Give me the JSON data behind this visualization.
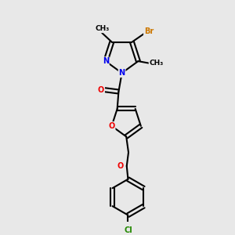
{
  "background_color": "#e8e8e8",
  "bond_color": "#000000",
  "bond_width": 1.5,
  "atom_colors": {
    "Br": "#cc7700",
    "N": "#0000ee",
    "O": "#ee0000",
    "Cl": "#228800",
    "C": "#000000"
  },
  "font_size": 7.0,
  "fig_width": 3.0,
  "fig_height": 3.0
}
